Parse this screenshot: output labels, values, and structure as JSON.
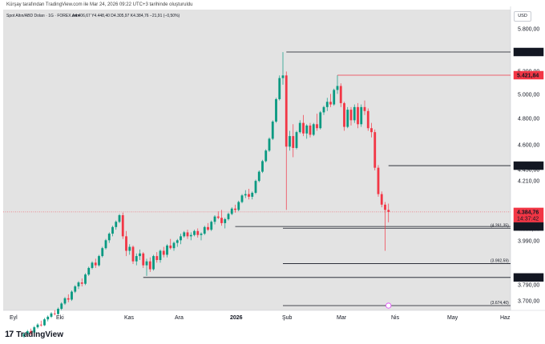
{
  "header": {
    "attribution": "Kürşay tarafından TradingView.com ile Mar 24, 2026 09:22 UTC+3 tarihinde oluşturuldu"
  },
  "currency": "USD",
  "brand": {
    "logo_mark": "17",
    "name": "TradingView"
  },
  "colors": {
    "up": "#089981",
    "down": "#f23645",
    "plot_bg": "#e3e3e3",
    "line": "#131722"
  },
  "chart_data": {
    "type": "candlestick",
    "title": "Spot Altın/ABD Doları · 1G · FOREX.com",
    "ohlc_label": {
      "open": "A4.406,67",
      "high": "Y4.448,40",
      "low": "D4.305,97",
      "close": "K4.384,76",
      "change": "−21,91 (−0,50%)"
    },
    "y_ticks": [
      "5.800,00",
      "5.400,00",
      "5.200,00",
      "5.000,00",
      "4.800,00",
      "4.600,00",
      "4.450,00",
      "4.210,00",
      "4.090,00",
      "3.990,00",
      "3.790,00",
      "3.700,00"
    ],
    "x_ticks": [
      "Eyl",
      "Eki",
      "Kas",
      "Ara",
      "2026",
      "Şub",
      "Mar",
      "Nis",
      "May",
      "Haz"
    ],
    "price_badges": [
      {
        "label": "5.597,73",
        "value": 5597.73,
        "style": "dark"
      },
      {
        "label": "5.421,84",
        "value": 5421.84,
        "style": "red"
      },
      {
        "label": "4.735,85",
        "value": 4735.85,
        "style": "dark"
      },
      {
        "label": "4.384,76",
        "value": 4384.76,
        "style": "current",
        "countdown": "14:37:42"
      },
      {
        "label": "4.274,23",
        "value": 4274.23,
        "style": "dark"
      },
      {
        "label": "3.887,83",
        "value": 3887.83,
        "style": "dark"
      }
    ],
    "inline_levels": [
      {
        "label": "(4.261,35)",
        "value": 4261.35
      },
      {
        "label": "(3.992,59)",
        "value": 3992.59
      },
      {
        "label": "(3.674,40)",
        "value": 3674.4
      }
    ],
    "candles": [
      [
        3440,
        3470,
        3430,
        3460
      ],
      [
        3460,
        3490,
        3450,
        3480
      ],
      [
        3480,
        3500,
        3450,
        3470
      ],
      [
        3470,
        3520,
        3465,
        3510
      ],
      [
        3510,
        3540,
        3500,
        3530
      ],
      [
        3530,
        3560,
        3515,
        3525
      ],
      [
        3525,
        3580,
        3520,
        3570
      ],
      [
        3570,
        3600,
        3555,
        3590
      ],
      [
        3590,
        3625,
        3580,
        3615
      ],
      [
        3615,
        3640,
        3600,
        3610
      ],
      [
        3610,
        3660,
        3605,
        3650
      ],
      [
        3650,
        3700,
        3640,
        3690
      ],
      [
        3690,
        3740,
        3680,
        3730
      ],
      [
        3730,
        3760,
        3700,
        3720
      ],
      [
        3720,
        3790,
        3710,
        3780
      ],
      [
        3780,
        3830,
        3770,
        3820
      ],
      [
        3820,
        3860,
        3800,
        3850
      ],
      [
        3850,
        3880,
        3820,
        3840
      ],
      [
        3840,
        3920,
        3830,
        3910
      ],
      [
        3910,
        3970,
        3900,
        3960
      ],
      [
        3960,
        4010,
        3950,
        4000
      ],
      [
        4000,
        4030,
        3960,
        3980
      ],
      [
        3980,
        4060,
        3970,
        4050
      ],
      [
        4050,
        4120,
        4040,
        4110
      ],
      [
        4110,
        4180,
        4100,
        4170
      ],
      [
        4170,
        4230,
        4150,
        4220
      ],
      [
        4220,
        4280,
        4200,
        4270
      ],
      [
        4270,
        4320,
        4250,
        4310
      ],
      [
        4310,
        4370,
        4300,
        4360
      ],
      [
        4360,
        4380,
        4180,
        4200
      ],
      [
        4200,
        4240,
        4050,
        4090
      ],
      [
        4090,
        4140,
        4060,
        4120
      ],
      [
        4120,
        4130,
        3990,
        4010
      ],
      [
        4010,
        4070,
        3980,
        4050
      ],
      [
        4050,
        4100,
        4020,
        4070
      ],
      [
        4070,
        4080,
        3960,
        3980
      ],
      [
        3980,
        4030,
        3900,
        4010
      ],
      [
        4010,
        4040,
        3930,
        3950
      ],
      [
        3950,
        4060,
        3940,
        4050
      ],
      [
        4050,
        4080,
        4000,
        4020
      ],
      [
        4020,
        4100,
        4000,
        4090
      ],
      [
        4090,
        4120,
        4040,
        4060
      ],
      [
        4060,
        4140,
        4040,
        4130
      ],
      [
        4130,
        4180,
        4100,
        4110
      ],
      [
        4110,
        4160,
        4090,
        4150
      ],
      [
        4150,
        4180,
        4120,
        4170
      ],
      [
        4170,
        4220,
        4140,
        4200
      ],
      [
        4200,
        4240,
        4190,
        4230
      ],
      [
        4230,
        4250,
        4180,
        4200
      ],
      [
        4200,
        4230,
        4170,
        4210
      ],
      [
        4210,
        4250,
        4200,
        4240
      ],
      [
        4240,
        4260,
        4190,
        4210
      ],
      [
        4210,
        4230,
        4170,
        4220
      ],
      [
        4220,
        4280,
        4210,
        4270
      ],
      [
        4270,
        4300,
        4240,
        4250
      ],
      [
        4250,
        4320,
        4240,
        4310
      ],
      [
        4310,
        4360,
        4290,
        4350
      ],
      [
        4350,
        4390,
        4330,
        4340
      ],
      [
        4340,
        4400,
        4280,
        4300
      ],
      [
        4300,
        4340,
        4260,
        4330
      ],
      [
        4330,
        4380,
        4320,
        4370
      ],
      [
        4370,
        4420,
        4360,
        4410
      ],
      [
        4410,
        4440,
        4380,
        4400
      ],
      [
        4400,
        4470,
        4390,
        4460
      ],
      [
        4460,
        4520,
        4450,
        4510
      ],
      [
        4510,
        4550,
        4490,
        4520
      ],
      [
        4520,
        4560,
        4480,
        4500
      ],
      [
        4500,
        4540,
        4480,
        4530
      ],
      [
        4530,
        4630,
        4520,
        4620
      ],
      [
        4620,
        4700,
        4610,
        4690
      ],
      [
        4690,
        4780,
        4680,
        4770
      ],
      [
        4770,
        4860,
        4760,
        4850
      ],
      [
        4850,
        4950,
        4840,
        4940
      ],
      [
        4940,
        5080,
        4930,
        5070
      ],
      [
        5070,
        5250,
        5060,
        5240
      ],
      [
        5240,
        5420,
        5230,
        5400
      ],
      [
        5400,
        5597,
        5350,
        5420
      ],
      [
        5420,
        5450,
        4400,
        4880
      ],
      [
        4880,
        5000,
        4850,
        4960
      ],
      [
        4960,
        5050,
        4800,
        4870
      ],
      [
        4870,
        5000,
        4860,
        4990
      ],
      [
        4990,
        5080,
        4980,
        5060
      ],
      [
        5060,
        5120,
        4960,
        4980
      ],
      [
        4980,
        5050,
        4940,
        5040
      ],
      [
        5040,
        5060,
        4950,
        4970
      ],
      [
        4970,
        5060,
        4960,
        5050
      ],
      [
        5050,
        5130,
        5000,
        5020
      ],
      [
        5020,
        5150,
        5010,
        5140
      ],
      [
        5140,
        5190,
        5120,
        5180
      ],
      [
        5180,
        5250,
        5150,
        5220
      ],
      [
        5220,
        5280,
        5180,
        5200
      ],
      [
        5200,
        5320,
        5190,
        5310
      ],
      [
        5310,
        5421,
        5280,
        5340
      ],
      [
        5340,
        5360,
        5180,
        5210
      ],
      [
        5210,
        5220,
        5000,
        5030
      ],
      [
        5030,
        5180,
        5020,
        5160
      ],
      [
        5160,
        5180,
        5040,
        5080
      ],
      [
        5080,
        5200,
        5060,
        5180
      ],
      [
        5180,
        5210,
        5020,
        5050
      ],
      [
        5050,
        5200,
        5030,
        5180
      ],
      [
        5180,
        5230,
        5120,
        5150
      ],
      [
        5150,
        5170,
        5000,
        5020
      ],
      [
        5020,
        5060,
        4950,
        4990
      ],
      [
        4990,
        5010,
        4700,
        4720
      ],
      [
        4720,
        4740,
        4500,
        4520
      ],
      [
        4520,
        4540,
        4420,
        4440
      ],
      [
        4440,
        4460,
        4090,
        4400
      ],
      [
        4400,
        4448,
        4306,
        4385
      ]
    ],
    "hlines": [
      {
        "value": 5597.73,
        "from": 77,
        "color": "#131722"
      },
      {
        "value": 5421.84,
        "from": 92,
        "color": "#f23645"
      },
      {
        "value": 4735.85,
        "from": 107,
        "color": "#131722"
      },
      {
        "value": 4274.23,
        "from": 62,
        "color": "#131722"
      },
      {
        "value": 4261.35,
        "from": 76,
        "color": "#131722"
      },
      {
        "value": 3992.59,
        "from": 76,
        "color": "#131722"
      },
      {
        "value": 3887.83,
        "from": 35,
        "color": "#131722"
      },
      {
        "value": 3674.4,
        "from": 76,
        "color": "#131722"
      }
    ]
  }
}
